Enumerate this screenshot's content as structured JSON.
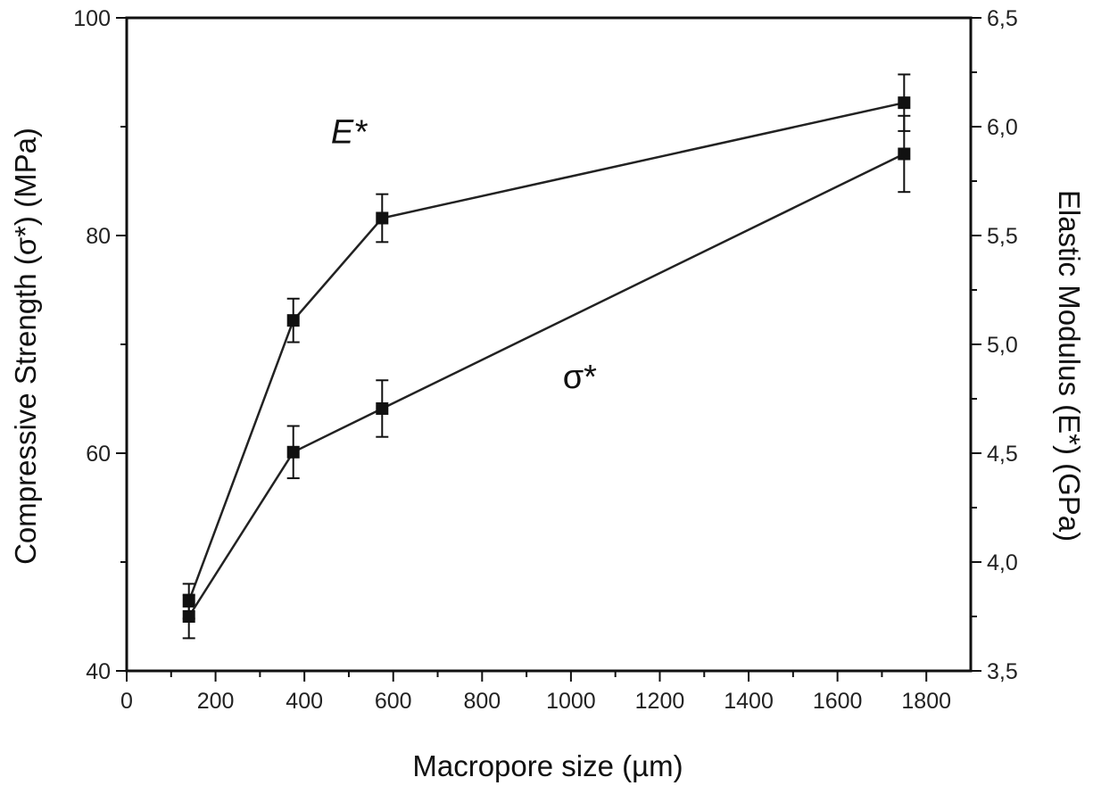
{
  "chart_data": {
    "type": "line",
    "xlabel": "Macropore size (µm)",
    "ylabel_left": "Compressive Strength (σ*) (MPa)",
    "ylabel_right": "Elastic Modulus (E*) (GPa)",
    "xlim": [
      0,
      1900
    ],
    "ylim_left": [
      40,
      100
    ],
    "ylim_right": [
      3.5,
      6.5
    ],
    "x_ticks": [
      "0",
      "200",
      "400",
      "600",
      "800",
      "1000",
      "1200",
      "1400",
      "1600",
      "1800"
    ],
    "y_left_ticks": [
      "40",
      "60",
      "80",
      "100"
    ],
    "y_right_ticks": [
      "3,5",
      "4,0",
      "4,5",
      "5,0",
      "5,5",
      "6,0",
      "6,5"
    ],
    "grid": false,
    "legend": "none",
    "series": [
      {
        "name": "E*",
        "axis": "right",
        "x": [
          140,
          375,
          575,
          1750
        ],
        "y": [
          3.82,
          5.11,
          5.58,
          6.11
        ],
        "err": [
          0.08,
          0.1,
          0.11,
          0.13
        ]
      },
      {
        "name": "σ*",
        "axis": "left",
        "x": [
          140,
          375,
          575,
          1750
        ],
        "y": [
          45,
          60.1,
          64.1,
          87.5
        ],
        "err": [
          2.0,
          2.4,
          2.6,
          3.5
        ]
      }
    ],
    "annotations": [
      {
        "text": "E*",
        "x": 500,
        "y_left": 88.5
      },
      {
        "text": "σ*",
        "x": 1020,
        "y_left": 66
      }
    ]
  }
}
